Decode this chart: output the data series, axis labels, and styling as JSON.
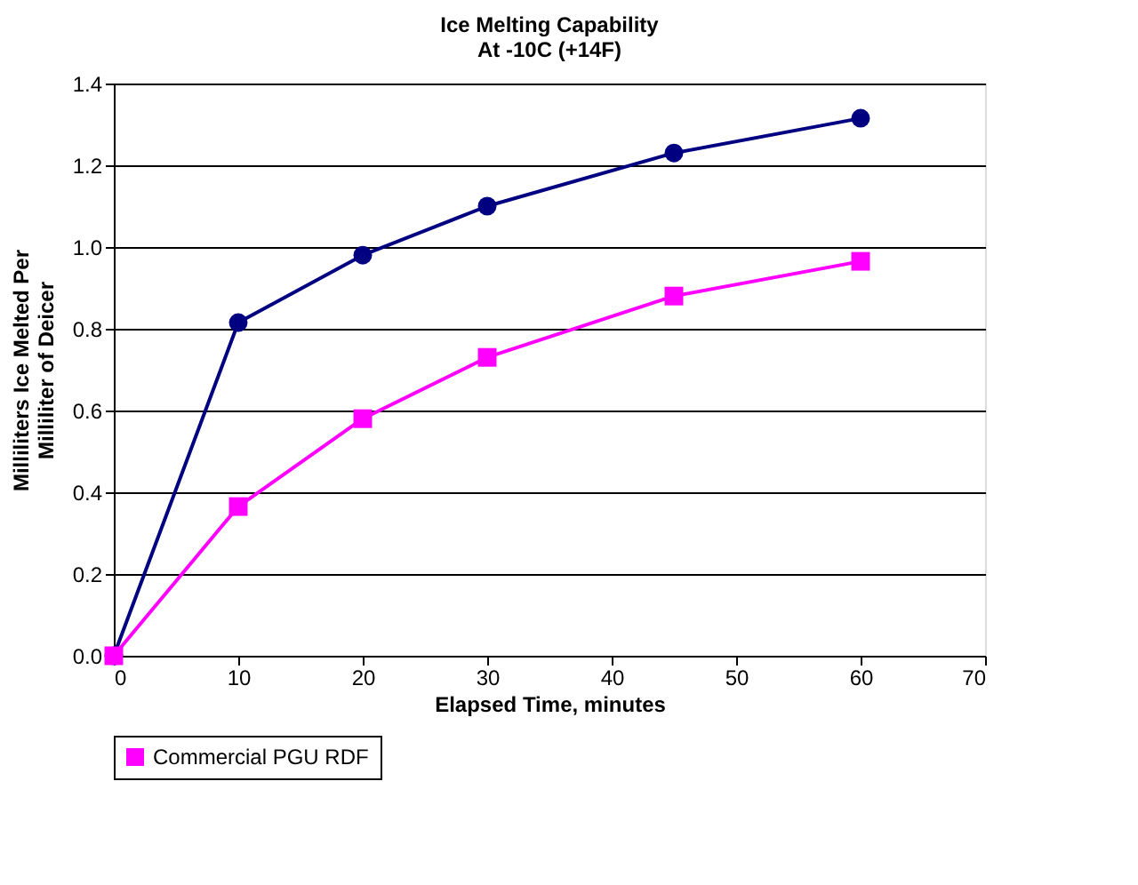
{
  "chart_data": {
    "type": "line",
    "title": "Ice Melting Capability",
    "subtitle": "At -10C (+14F)",
    "xlabel": "Elapsed Time, minutes",
    "ylabel": "Milliliters Ice Melted Per Milliliter of Deicer",
    "x": [
      0,
      10,
      20,
      30,
      45,
      60
    ],
    "series": [
      {
        "color": "#000080",
        "marker": "circle",
        "values": [
          0,
          0.815,
          0.98,
          1.1,
          1.23,
          1.315
        ]
      },
      {
        "name": "Commercial PGU RDF",
        "color": "#ff00ff",
        "marker": "square",
        "values": [
          0,
          0.365,
          0.58,
          0.73,
          0.88,
          0.965
        ]
      }
    ],
    "xlim": [
      0,
      70
    ],
    "xticks": [
      0,
      10,
      20,
      30,
      40,
      50,
      60,
      70
    ],
    "ylim": [
      0,
      1.4
    ],
    "yticks": [
      {
        "value": 0,
        "label": "0.0"
      },
      0.2,
      0.4,
      0.6,
      0.8,
      {
        "value": 1,
        "label": "1.0"
      },
      1.2,
      1.4
    ],
    "grid": "y",
    "legend": "bottom"
  }
}
